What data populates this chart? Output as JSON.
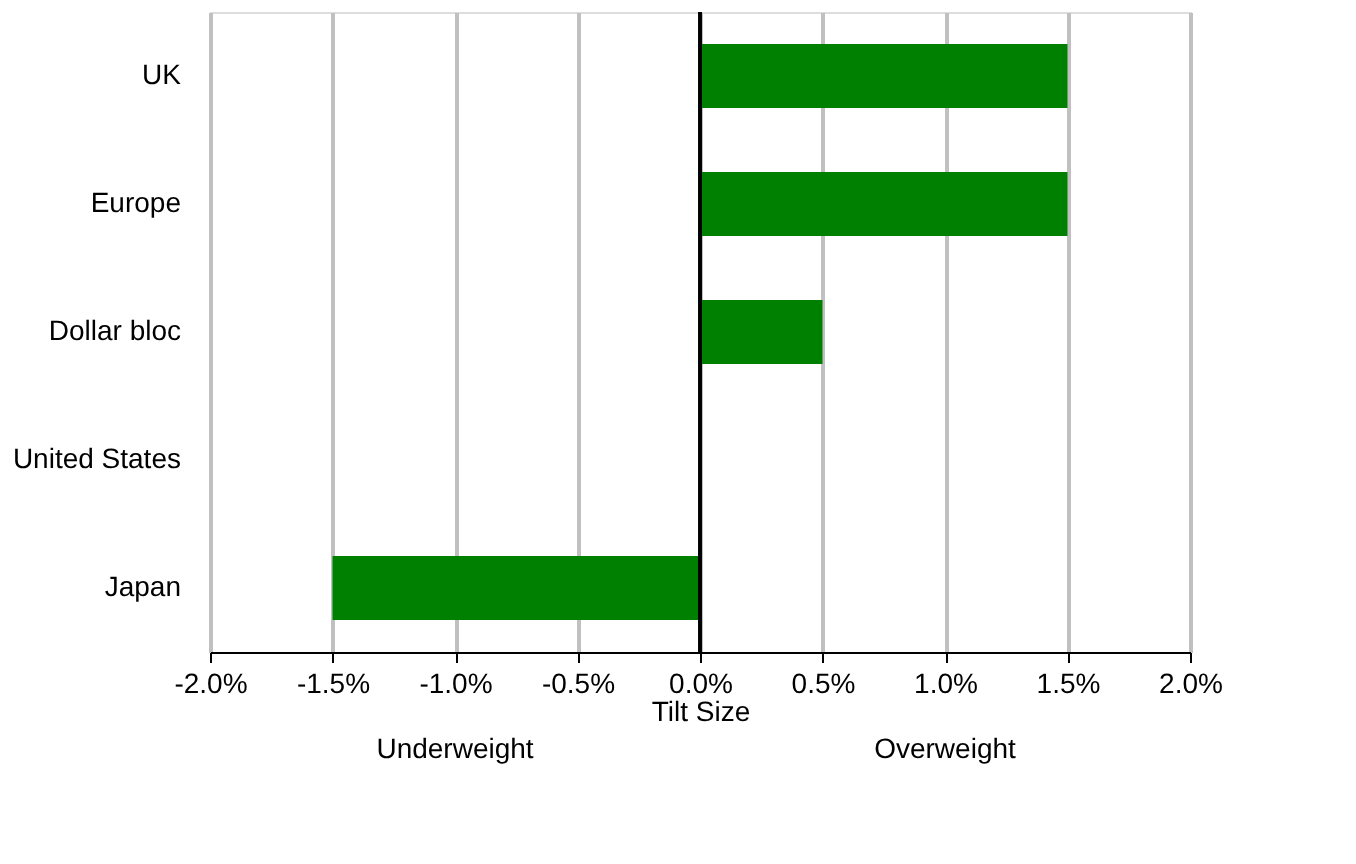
{
  "chart_data": {
    "type": "bar",
    "orientation": "horizontal",
    "categories": [
      "UK",
      "Europe",
      "Dollar bloc",
      "United States",
      "Japan"
    ],
    "values": [
      1.5,
      1.5,
      0.5,
      0,
      -1.5
    ],
    "color": "#008000",
    "xlabel": "Tilt Size",
    "xlim": [
      -2,
      2
    ],
    "xticks": [
      {
        "value": -2,
        "label": "-2.0%"
      },
      {
        "value": -1.5,
        "label": "-1.5%"
      },
      {
        "value": -1,
        "label": "-1.0%"
      },
      {
        "value": -0.5,
        "label": "-0.5%"
      },
      {
        "value": 0,
        "label": "0.0%"
      },
      {
        "value": 0.5,
        "label": "0.5%"
      },
      {
        "value": 1,
        "label": "1.0%"
      },
      {
        "value": 1.5,
        "label": "1.5%"
      },
      {
        "value": 2,
        "label": "2.0%"
      }
    ],
    "grid": "x",
    "annotations": [
      "Underweight",
      "Overweight"
    ]
  }
}
